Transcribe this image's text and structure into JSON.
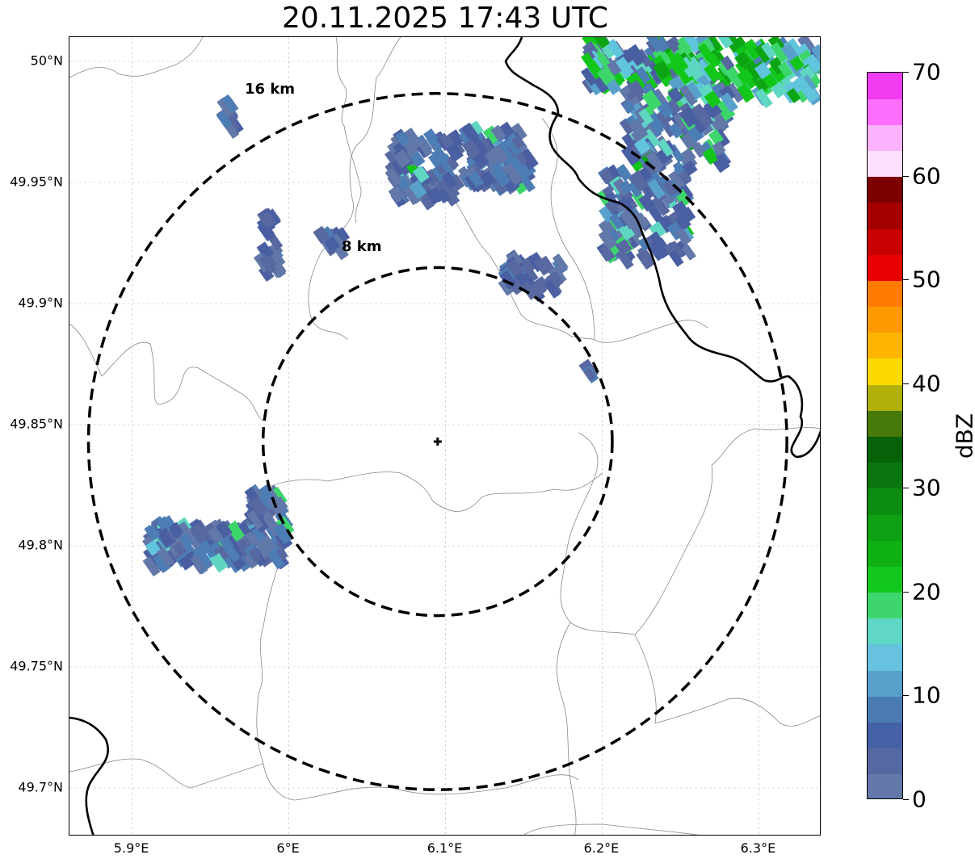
{
  "title": "20.11.2025 17:43 UTC",
  "map": {
    "extent": {
      "lon_min": 5.86,
      "lon_max": 6.34,
      "lat_min": 49.68,
      "lat_max": 50.01
    },
    "center": {
      "lon": 6.095,
      "lat": 49.843
    },
    "lat_ticks": [
      {
        "value": 50.0,
        "label": "50°N"
      },
      {
        "value": 49.95,
        "label": "49.95°N"
      },
      {
        "value": 49.9,
        "label": "49.9°N"
      },
      {
        "value": 49.85,
        "label": "49.85°N"
      },
      {
        "value": 49.8,
        "label": "49.8°N"
      },
      {
        "value": 49.75,
        "label": "49.75°N"
      },
      {
        "value": 49.7,
        "label": "49.7°N"
      }
    ],
    "lon_ticks": [
      {
        "value": 5.9,
        "label": "5.9°E"
      },
      {
        "value": 6.0,
        "label": "6°E"
      },
      {
        "value": 6.1,
        "label": "6.1°E"
      },
      {
        "value": 6.2,
        "label": "6.2°E"
      },
      {
        "value": 6.3,
        "label": "6.3°E"
      }
    ],
    "rings": [
      {
        "radius_km": 8,
        "label": "8 km"
      },
      {
        "radius_km": 16,
        "label": "16 km"
      }
    ],
    "echo_colors": [
      "#6278a8",
      "#5868a0",
      "#4a5fa2",
      "#4d7db5",
      "#58a1ca",
      "#61c4dd",
      "#5fd6c2",
      "#3dd66b",
      "#12c61a",
      "#0da514"
    ]
  },
  "colorbar": {
    "label": "dBZ",
    "vmin": 0,
    "vmax": 70,
    "ticks": [
      {
        "value": 0,
        "label": "0"
      },
      {
        "value": 10,
        "label": "10"
      },
      {
        "value": 20,
        "label": "20"
      },
      {
        "value": 30,
        "label": "30"
      },
      {
        "value": 40,
        "label": "40"
      },
      {
        "value": 50,
        "label": "50"
      },
      {
        "value": 60,
        "label": "60"
      },
      {
        "value": 70,
        "label": "70"
      }
    ],
    "colors": [
      "#6478aa",
      "#5568a2",
      "#4460a6",
      "#4a7cb3",
      "#57a0cb",
      "#66c2de",
      "#5fd7c4",
      "#3ed66c",
      "#12c81e",
      "#0fb014",
      "#0e9f12",
      "#0c8d10",
      "#0a760f",
      "#066109",
      "#477a09",
      "#b0b008",
      "#fcd900",
      "#fdb500",
      "#fe9a00",
      "#fe7b00",
      "#e80000",
      "#c80000",
      "#a40000",
      "#7c0000",
      "#fde0fd",
      "#fdb2fd",
      "#fd6efd",
      "#f03cf0"
    ]
  }
}
